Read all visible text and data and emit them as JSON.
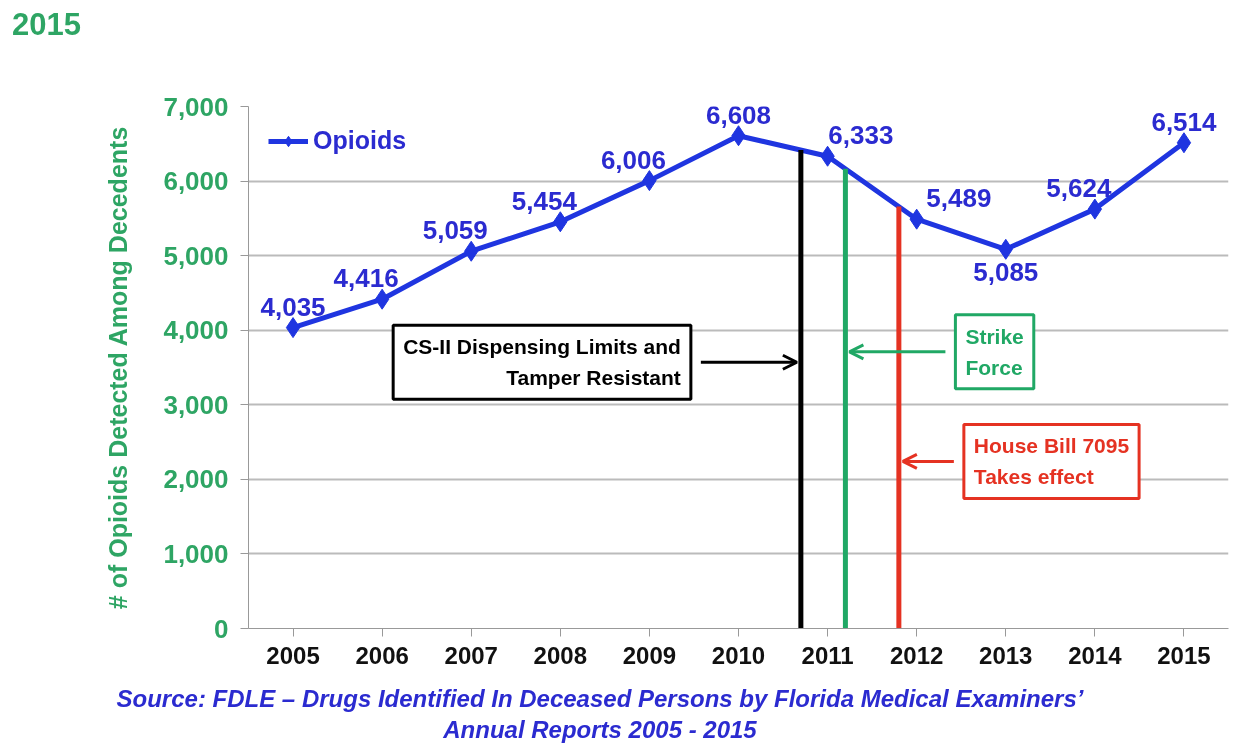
{
  "chart_data": {
    "type": "line",
    "title": "2015",
    "ylabel": "# of Opioids Detected Among Decedents",
    "x": [
      2005,
      2006,
      2007,
      2008,
      2009,
      2010,
      2011,
      2012,
      2013,
      2014,
      2015
    ],
    "xlim": [
      2004.5,
      2015.5
    ],
    "xticks": [
      2005,
      2006,
      2007,
      2008,
      2009,
      2010,
      2011,
      2012,
      2013,
      2014,
      2015
    ],
    "ylim": [
      0,
      7000
    ],
    "yticks": [
      0,
      {
        "value": 1000,
        "label": "1,000"
      },
      {
        "value": 2000,
        "label": "2,000"
      },
      {
        "value": 3000,
        "label": "3,000"
      },
      {
        "value": 4000,
        "label": "4,000"
      },
      {
        "value": 5000,
        "label": "5,000"
      },
      {
        "value": 6000,
        "label": "6,000"
      },
      {
        "value": 7000,
        "label": "7,000"
      }
    ],
    "series": [
      {
        "name": "Opioids",
        "color": "#1f35e0",
        "values": [
          4035,
          4416,
          5059,
          5454,
          6006,
          6608,
          6333,
          5489,
          5085,
          5624,
          6514
        ],
        "value_labels": [
          "4,035",
          "4,416",
          "5,059",
          "5,454",
          "6,006",
          "6,608",
          "6,333",
          "5,489",
          "5,085",
          "5,624",
          "6,514"
        ]
      }
    ],
    "marker": "diamond",
    "line_style": "solid",
    "grid": "y",
    "legend": "top left",
    "ref_lines": [
      {
        "axis": "x",
        "value": 2010.7,
        "label": "CS-II Dispensing Limits and\nTamper Resistant",
        "color": "#000000"
      },
      {
        "axis": "x",
        "value": 2011.2,
        "label": "Strike\nForce",
        "color": "#20a865"
      },
      {
        "axis": "x",
        "value": 2011.8,
        "label": "House Bill 7095\nTakes effect",
        "color": "#e53222"
      }
    ],
    "annotations": [
      "Source: FDLE – Drugs Identified In Deceased Persons by Florida Medical Examiners’\nAnnual Reports  2005 - 2015"
    ]
  }
}
